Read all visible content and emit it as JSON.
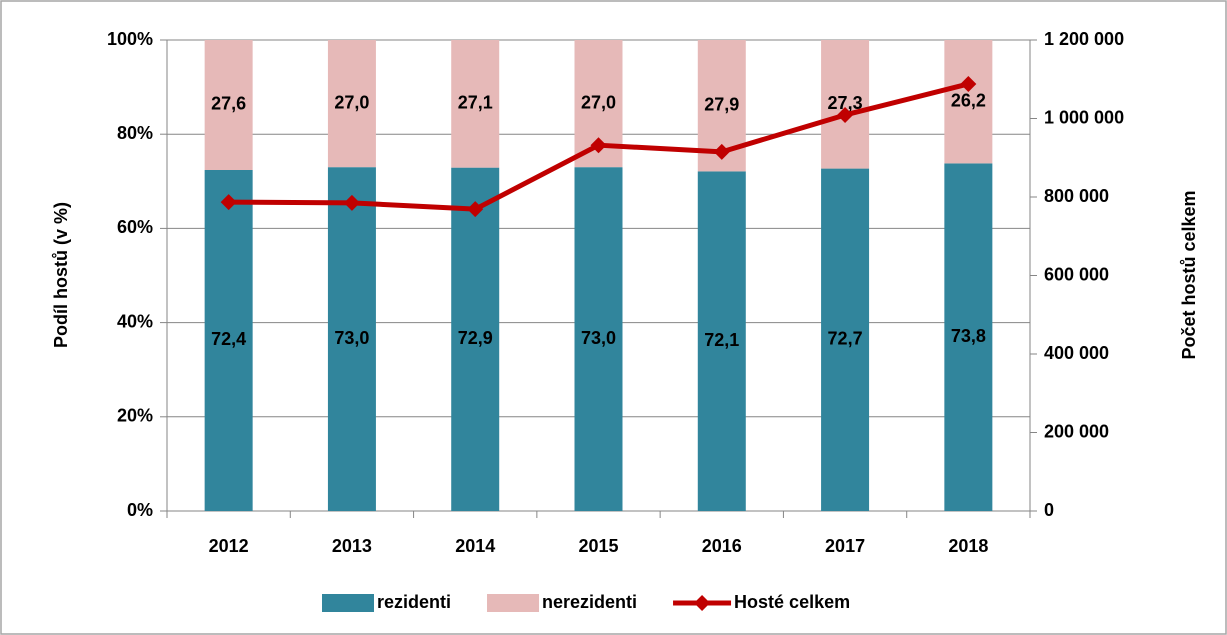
{
  "chart_data": {
    "type": "bar",
    "categories": [
      "2012",
      "2013",
      "2014",
      "2015",
      "2016",
      "2017",
      "2018"
    ],
    "ylabel": "Podíl hostů (v %)",
    "y2label": "Počet hostů celkem",
    "ylim": [
      0,
      100
    ],
    "yticks": [
      {
        "value": 0,
        "label": "0%"
      },
      {
        "value": 20,
        "label": "20%"
      },
      {
        "value": 40,
        "label": "40%"
      },
      {
        "value": 60,
        "label": "60%"
      },
      {
        "value": 80,
        "label": "80%"
      },
      {
        "value": 100,
        "label": "100%"
      }
    ],
    "y2lim": [
      0,
      1200000
    ],
    "y2ticks": [
      0,
      {
        "value": 200000,
        "label": "200 000"
      },
      {
        "value": 400000,
        "label": "400 000"
      },
      {
        "value": 600000,
        "label": "600 000"
      },
      {
        "value": 800000,
        "label": "800 000"
      },
      {
        "value": 1000000,
        "label": "1 000 000"
      },
      {
        "value": 1200000,
        "label": "1 200 000"
      }
    ],
    "grid": true,
    "legend": "bottom",
    "series": [
      {
        "name": "rezidenti",
        "color": "#31859c",
        "stack": true,
        "values": [
          72.4,
          73.0,
          72.9,
          73.0,
          72.1,
          72.7,
          73.8
        ],
        "value_labels": [
          "72,4",
          "73,0",
          "72,9",
          "73,0",
          "72,1",
          "72,7",
          "73,8"
        ]
      },
      {
        "name": "nerezidenti",
        "color": "#e6b9b8",
        "stack": true,
        "values": [
          27.6,
          27.0,
          27.1,
          27.0,
          27.9,
          27.3,
          26.2
        ],
        "value_labels": [
          "27,6",
          "27,0",
          "27,1",
          "27,0",
          "27,9",
          "27,3",
          "26,2"
        ]
      },
      {
        "name": "Hosté celkem",
        "color": "#c00000",
        "type": "line",
        "axis": "y2",
        "values": [
          787000,
          785000,
          769000,
          932000,
          915000,
          1009000,
          1088000
        ]
      }
    ]
  }
}
